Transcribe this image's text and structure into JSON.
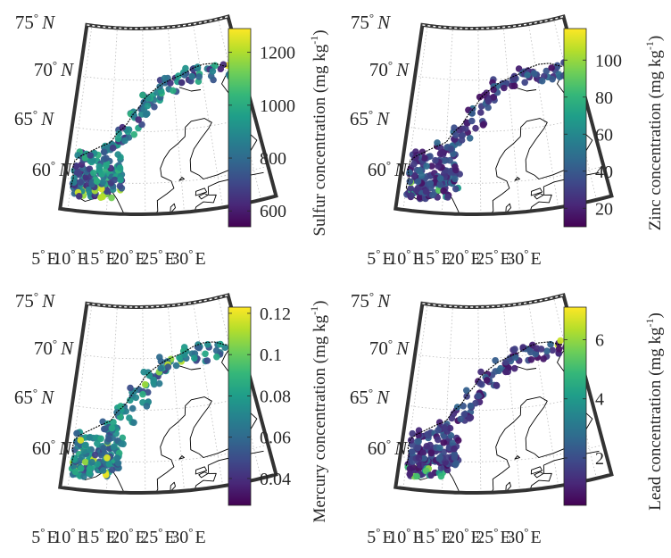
{
  "figure": {
    "panels": [
      {
        "id": "sulfur",
        "colorbar": {
          "label": "Sulfur concentration (mg kg",
          "label_sup": "-1",
          "label_close": ")",
          "ticks": [
            "600",
            "800",
            "1000",
            "1200"
          ],
          "tick_values": [
            600,
            800,
            1000,
            1200
          ],
          "range": [
            540,
            1290
          ]
        }
      },
      {
        "id": "zinc",
        "colorbar": {
          "label": "Zinc concentration (mg kg",
          "label_sup": "-1",
          "label_close": ")",
          "ticks": [
            "20",
            "40",
            "60",
            "80",
            "100"
          ],
          "tick_values": [
            20,
            40,
            60,
            80,
            100
          ],
          "range": [
            10,
            117
          ]
        }
      },
      {
        "id": "mercury",
        "colorbar": {
          "label": "Mercury concentration (mg kg",
          "label_sup": "-1",
          "label_close": ")",
          "ticks": [
            "0.04",
            "0.06",
            "0.08",
            "0.1",
            "0.12"
          ],
          "tick_values": [
            0.04,
            0.06,
            0.08,
            0.1,
            0.12
          ],
          "range": [
            0.027,
            0.123
          ]
        }
      },
      {
        "id": "lead",
        "colorbar": {
          "label": "Lead concentration (mg kg",
          "label_sup": "-1",
          "label_close": ")",
          "ticks": [
            "2",
            "4",
            "6"
          ],
          "tick_values": [
            2,
            4,
            6
          ],
          "range": [
            0.4,
            7.1
          ]
        }
      }
    ],
    "map": {
      "lat_labels": [
        {
          "deg": "75",
          "hemi": "N"
        },
        {
          "deg": "70",
          "hemi": "N"
        },
        {
          "deg": "65",
          "hemi": "N"
        },
        {
          "deg": "60",
          "hemi": "N"
        }
      ],
      "lon_labels": [
        {
          "deg": "5",
          "hemi": "E"
        },
        {
          "deg": "10",
          "hemi": "E"
        },
        {
          "deg": "15",
          "hemi": "E"
        },
        {
          "deg": "20",
          "hemi": "E"
        },
        {
          "deg": "25",
          "hemi": "E"
        },
        {
          "deg": "30",
          "hemi": "E"
        }
      ],
      "degree_symbol": "°"
    },
    "colormap": [
      "#440154",
      "#482878",
      "#3e4989",
      "#31688e",
      "#26828e",
      "#1f9e89",
      "#35b779",
      "#6ece58",
      "#b5de2b",
      "#fde725"
    ],
    "colors": {
      "frame": "#333333",
      "coast": "#000000",
      "grid": "#bcbcbc"
    }
  }
}
